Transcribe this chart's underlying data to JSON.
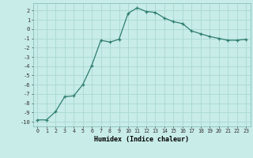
{
  "x": [
    0,
    1,
    2,
    3,
    4,
    5,
    6,
    7,
    8,
    9,
    10,
    11,
    12,
    13,
    14,
    15,
    16,
    17,
    18,
    19,
    20,
    21,
    22,
    23
  ],
  "y": [
    -9.8,
    -9.8,
    -8.9,
    -7.3,
    -7.2,
    -6.0,
    -3.9,
    -1.2,
    -1.4,
    -1.1,
    1.7,
    2.3,
    1.9,
    1.8,
    1.2,
    0.8,
    0.6,
    -0.2,
    -0.5,
    -0.8,
    -1.0,
    -1.2,
    -1.2,
    -1.1
  ],
  "xlabel": "Humidex (Indice chaleur)",
  "line_color": "#2e7d6e",
  "bg_color": "#c8ece8",
  "grid_color": "#a8d8d0",
  "ylim": [
    -10.5,
    2.8
  ],
  "xlim": [
    -0.5,
    23.5
  ],
  "yticks": [
    2,
    1,
    0,
    -1,
    -2,
    -3,
    -4,
    -5,
    -6,
    -7,
    -8,
    -9,
    -10
  ],
  "xticks": [
    0,
    1,
    2,
    3,
    4,
    5,
    6,
    7,
    8,
    9,
    10,
    11,
    12,
    13,
    14,
    15,
    16,
    17,
    18,
    19,
    20,
    21,
    22,
    23
  ]
}
